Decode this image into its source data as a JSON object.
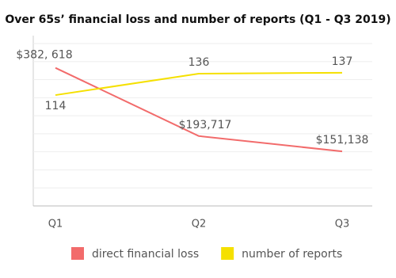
{
  "chart_data": {
    "type": "line",
    "title": "Over 65s’ financial loss and number of reports (Q1 - Q3 2019)",
    "categories": [
      "Q1",
      "Q2",
      "Q3"
    ],
    "series": [
      {
        "name": "direct financial loss",
        "color": "#f26b6b",
        "values": [
          382618,
          193717,
          151138
        ],
        "value_labels": [
          "$382, 618",
          "$193,717",
          "$151,138"
        ]
      },
      {
        "name": "number of reports",
        "color": "#f5e000",
        "axis": "y2",
        "values": [
          114,
          136,
          137
        ]
      }
    ],
    "ylim": [
      0,
      450000
    ],
    "yticks": [
      0,
      50000,
      100000,
      150000,
      200000,
      250000,
      300000,
      350000,
      400000,
      450000
    ],
    "y2lim": [
      0,
      167
    ],
    "grid": true,
    "legend": "bottom"
  }
}
